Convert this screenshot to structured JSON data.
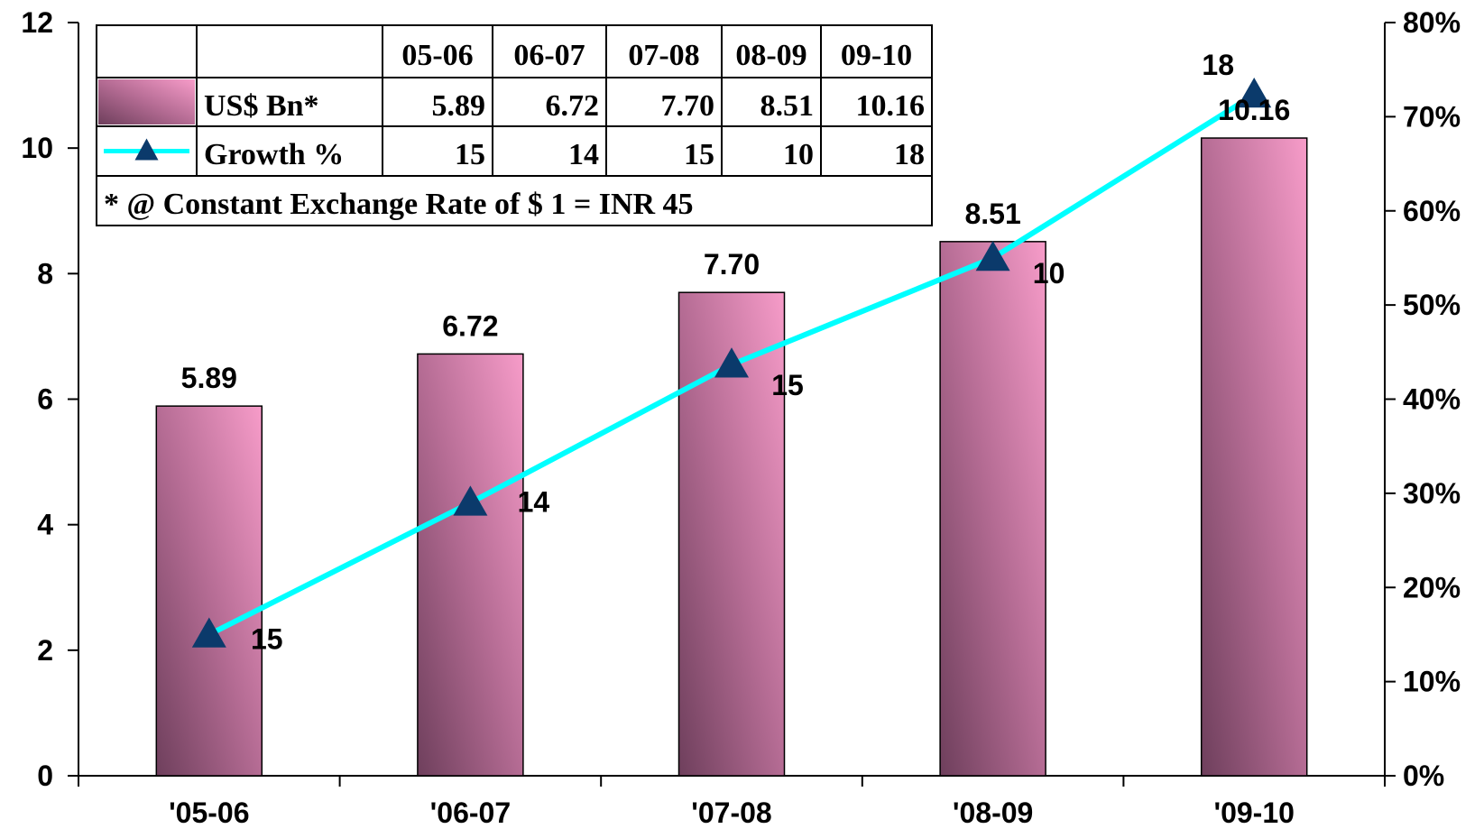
{
  "chart_data": {
    "type": "bar",
    "categories": [
      "'05-06",
      "'06-07",
      "'07-08",
      "'08-09",
      "'09-10"
    ],
    "series": [
      {
        "name": "US$ Bn*",
        "type": "bar",
        "axis": "left",
        "values": [
          5.89,
          6.72,
          7.7,
          8.51,
          10.16
        ],
        "labels": [
          "5.89",
          "6.72",
          "7.70",
          "8.51",
          "10.16"
        ]
      },
      {
        "name": "Growth %",
        "type": "line",
        "axis": "right",
        "values": [
          15,
          14,
          15,
          10,
          18
        ],
        "labels": [
          "15",
          "14",
          "15",
          "10",
          "18"
        ]
      }
    ],
    "ylim_left": [
      0,
      12
    ],
    "yticks_left": [
      "0",
      "2",
      "4",
      "6",
      "8",
      "10",
      "12"
    ],
    "ylim_right": [
      0,
      80
    ],
    "yticks_right": [
      "0%",
      "10%",
      "20%",
      "30%",
      "40%",
      "50%",
      "60%",
      "70%",
      "80%"
    ],
    "grid": false,
    "colors": {
      "bar_light": "#f79cc9",
      "bar_dark": "#6e3f5c",
      "line": "#00ffff",
      "marker": "#0b3a6b"
    },
    "data_table": {
      "columns": [
        "05-06",
        "06-07",
        "07-08",
        "08-09",
        "09-10"
      ],
      "rows": [
        {
          "label": "US$ Bn*",
          "values": [
            "5.89",
            "6.72",
            "7.70",
            "8.51",
            "10.16"
          ]
        },
        {
          "label": "Growth %",
          "values": [
            "15",
            "14",
            "15",
            "10",
            "18"
          ]
        }
      ],
      "footnote": "* @ Constant Exchange Rate of $ 1 = INR 45"
    }
  }
}
